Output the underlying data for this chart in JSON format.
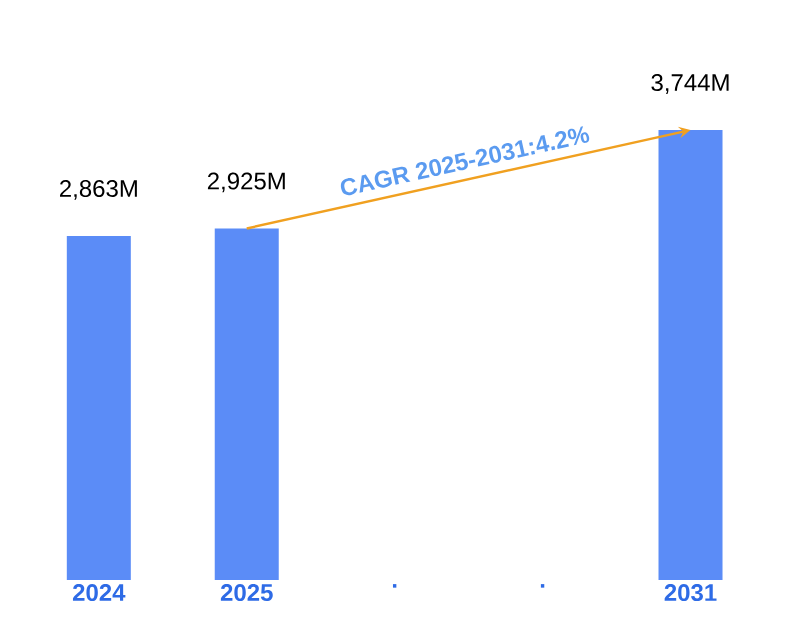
{
  "chart_data": {
    "type": "bar",
    "categories": [
      "2024",
      "2025",
      ".",
      ".",
      "2031"
    ],
    "values": [
      2863,
      2925,
      null,
      null,
      3744
    ],
    "value_labels": [
      "2,863M",
      "2,925M",
      null,
      null,
      "3,744M"
    ],
    "color": "#5b8cf7",
    "annotations": [
      "CAGR 2025-2031:4.2%"
    ],
    "tick_labels": "x",
    "grid": false
  }
}
